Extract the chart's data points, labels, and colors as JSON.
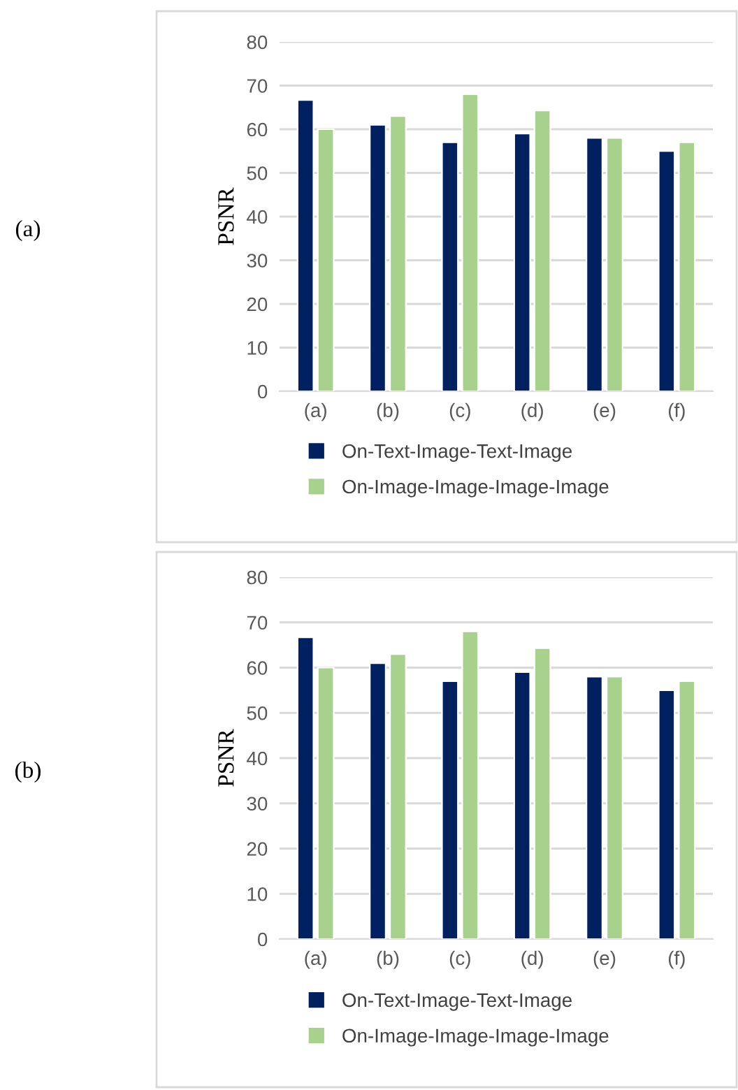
{
  "chart_data": [
    {
      "type": "bar",
      "ylabel": "PSNR",
      "annotations": [
        "(a)"
      ],
      "categories": [
        "(a)",
        "(b)",
        "(c)",
        "(d)",
        "(e)",
        "(f)"
      ],
      "series": [
        {
          "name": "On-Text-Image-Text-Image",
          "color": "#002060",
          "values": [
            66.7,
            61,
            57,
            59,
            58,
            55
          ]
        },
        {
          "name": "On-Image-Image-Image-Image",
          "color": "#a9d18e",
          "values": [
            60,
            63,
            68,
            64.3,
            58,
            57
          ]
        }
      ],
      "ylim": [
        0,
        80
      ],
      "yticks": [
        0,
        10,
        20,
        30,
        40,
        50,
        60,
        70,
        80
      ],
      "grid": "y",
      "legend": "bottom"
    },
    {
      "type": "bar",
      "ylabel": "PSNR",
      "annotations": [
        "(b)"
      ],
      "categories": [
        "(a)",
        "(b)",
        "(c)",
        "(d)",
        "(e)",
        "(f)"
      ],
      "series": [
        {
          "name": "On-Text-Image-Text-Image",
          "color": "#002060",
          "values": [
            66.7,
            61,
            57,
            59,
            58,
            55
          ]
        },
        {
          "name": "On-Image-Image-Image-Image",
          "color": "#a9d18e",
          "values": [
            60,
            63,
            68,
            64.3,
            58,
            57
          ]
        }
      ],
      "ylim": [
        0,
        80
      ],
      "yticks": [
        0,
        10,
        20,
        30,
        40,
        50,
        60,
        70,
        80
      ],
      "grid": "y",
      "legend": "bottom"
    }
  ]
}
